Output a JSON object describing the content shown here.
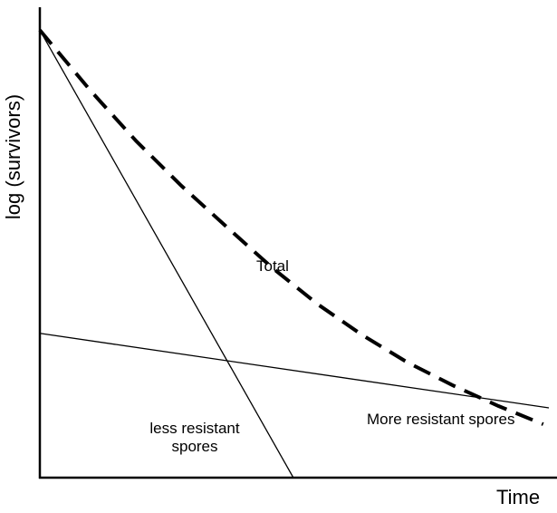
{
  "chart_data": {
    "type": "line",
    "x_label": "Time",
    "y_label": "log (survivors)",
    "xlim": [
      0,
      10
    ],
    "ylim": [
      0,
      10
    ],
    "series": [
      {
        "name": "less resistant spores",
        "color": "#000000",
        "style": "solid",
        "x": [
          0,
          4.91
        ],
        "values": [
          9.55,
          0
        ]
      },
      {
        "name": "More resistant spores",
        "color": "#000000",
        "style": "solid",
        "x": [
          0,
          9.86
        ],
        "values": [
          3.08,
          1.49
        ]
      },
      {
        "name": "Total",
        "color": "#000000",
        "style": "dashed",
        "x": [
          0,
          0.98,
          1.86,
          2.74,
          3.61,
          4.49,
          5.37,
          6.25,
          7.12,
          8.0,
          8.88,
          9.75
        ],
        "values": [
          9.55,
          8.26,
          7.19,
          6.23,
          5.36,
          4.49,
          3.71,
          3.04,
          2.46,
          1.97,
          1.53,
          1.14
        ]
      }
    ]
  }
}
